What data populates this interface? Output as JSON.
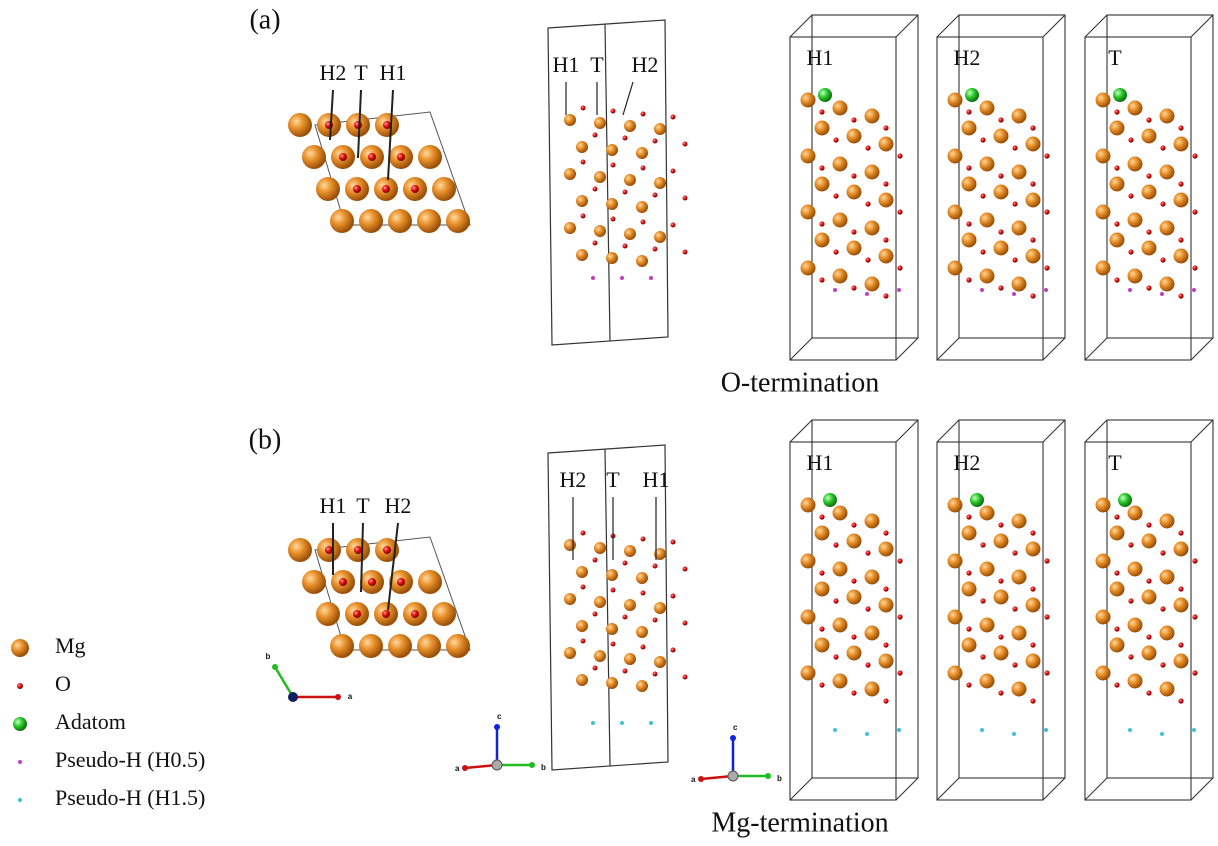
{
  "panels": [
    {
      "label": "(a)",
      "top_view_labels": [
        "H2",
        "T",
        "H1"
      ],
      "side_view_labels": [
        "H1",
        "T",
        "H2"
      ],
      "cell_labels": [
        "H1",
        "H2",
        "T"
      ],
      "termination": "O-termination"
    },
    {
      "label": "(b)",
      "top_view_labels": [
        "H1",
        "T",
        "H2"
      ],
      "side_view_labels": [
        "H2",
        "T",
        "H1"
      ],
      "cell_labels": [
        "H1",
        "H2",
        "T"
      ],
      "termination": "Mg-termination"
    }
  ],
  "legend": [
    "Mg",
    "O",
    "Adatom",
    "Pseudo-H (H0.5)",
    "Pseudo-H (H1.5)"
  ],
  "axis_triads": [
    {
      "labels": [
        "b",
        "a"
      ]
    },
    {
      "labels": [
        "c",
        "a",
        "b"
      ]
    },
    {
      "labels": [
        "c",
        "a",
        "b"
      ]
    }
  ]
}
